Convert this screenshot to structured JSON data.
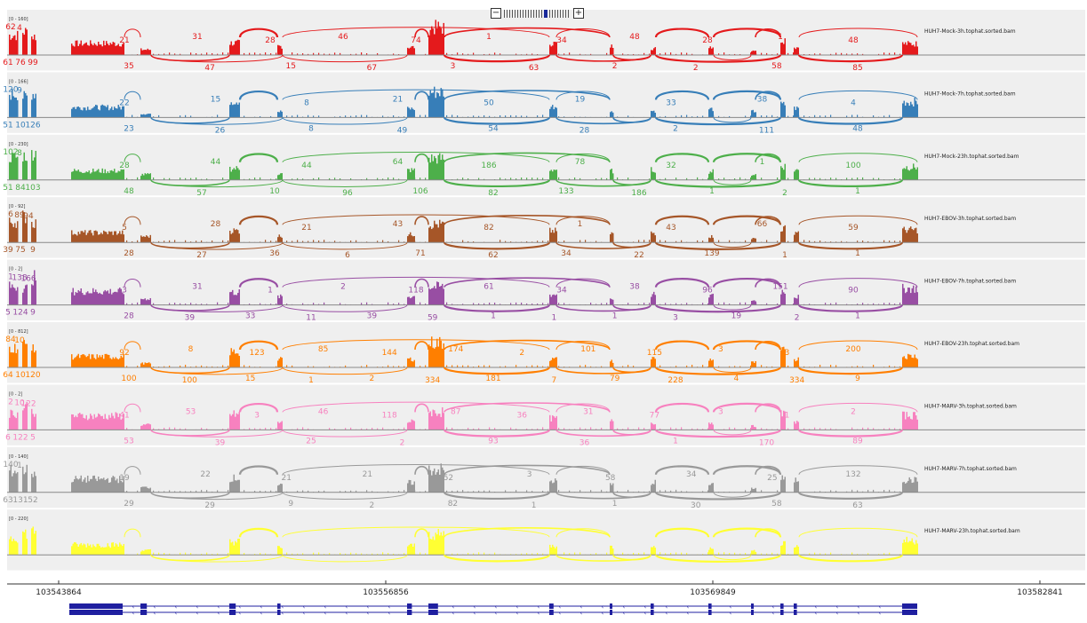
{
  "zoom": {
    "minus": "−",
    "plus": "+"
  },
  "chart_data": {
    "type": "sashimi",
    "x_axis": {
      "ticks": [
        "103543864",
        "103556856",
        "103569849",
        "103582841"
      ]
    },
    "tracks": [
      {
        "name": "HUH7-Mock-3h.tophat.sorted.bam",
        "range": "[0 - 160]",
        "color": "#e41a1c",
        "left_top": [
          "62",
          "4"
        ],
        "left_bottom": [
          "61",
          "76",
          "99"
        ],
        "above": [
          "21",
          "31",
          "28",
          "46",
          "74",
          "1",
          "34",
          "48",
          "28",
          "1",
          "48"
        ],
        "below": [
          "35",
          "47",
          "15",
          "67",
          "3",
          "63",
          "2",
          "2",
          "58",
          "85"
        ]
      },
      {
        "name": "HUH7-Mock-7h.tophat.sorted.bam",
        "range": "[0 - 166]",
        "color": "#377eb8",
        "left_top": [
          "120",
          "9"
        ],
        "left_bottom": [
          "51",
          "10",
          "126"
        ],
        "above": [
          "22",
          "15",
          "8",
          "21",
          "50",
          "19",
          "33",
          "38",
          "4"
        ],
        "below": [
          "23",
          "26",
          "8",
          "49",
          "54",
          "28",
          "2",
          "111",
          "48"
        ]
      },
      {
        "name": "HUH7-Mock-23h.tophat.sorted.bam",
        "range": "[0 - 230]",
        "color": "#4daf4a",
        "left_top": [
          "102",
          "8"
        ],
        "left_bottom": [
          "51",
          "84",
          "103"
        ],
        "above": [
          "28",
          "44",
          "44",
          "64",
          "186",
          "78",
          "32",
          "1",
          "100"
        ],
        "below": [
          "48",
          "57",
          "10",
          "96",
          "106",
          "82",
          "133",
          "186",
          "1",
          "2",
          "1"
        ]
      },
      {
        "name": "HUH7-EBOV-3h.tophat.sorted.bam",
        "range": "[0 - 92]",
        "color": "#a65628",
        "left_top": [
          "6",
          "89",
          "94"
        ],
        "left_bottom": [
          "39",
          "75",
          "9"
        ],
        "above": [
          "5",
          "28",
          "21",
          "43",
          "82",
          "1",
          "43",
          "66",
          "59"
        ],
        "below": [
          "28",
          "27",
          "36",
          "6",
          "71",
          "62",
          "34",
          "22",
          "139",
          "1",
          "1"
        ]
      },
      {
        "name": "HUH7-EBOV-7h.tophat.sorted.bam",
        "range": "[0 - 2]",
        "color": "#984ea3",
        "left_top": [
          "1",
          "138",
          "166"
        ],
        "left_bottom": [
          "5",
          "124",
          "9"
        ],
        "above": [
          "3",
          "31",
          "1",
          "2",
          "118",
          "61",
          "34",
          "38",
          "96",
          "151",
          "90"
        ],
        "below": [
          "28",
          "39",
          "33",
          "11",
          "39",
          "59",
          "1",
          "1",
          "1",
          "3",
          "19",
          "2",
          "1"
        ]
      },
      {
        "name": "HUH7-EBOV-23h.tophat.sorted.bam",
        "range": "[0 - 812]",
        "color": "#ff7f00",
        "left_top": [
          "84",
          "10"
        ],
        "left_bottom": [
          "64",
          "10",
          "120"
        ],
        "above": [
          "92",
          "8",
          "123",
          "85",
          "144",
          "174",
          "2",
          "101",
          "115",
          "3",
          "3",
          "200"
        ],
        "below": [
          "100",
          "100",
          "15",
          "1",
          "2",
          "334",
          "181",
          "7",
          "79",
          "228",
          "4",
          "334",
          "9"
        ]
      },
      {
        "name": "HUH7-MARV-3h.tophat.sorted.bam",
        "range": "[0 - 2]",
        "color": "#f781bf",
        "left_top": [
          "2",
          "10",
          "122"
        ],
        "left_bottom": [
          "6",
          "122",
          "5"
        ],
        "above": [
          "41",
          "53",
          "3",
          "46",
          "118",
          "87",
          "36",
          "31",
          "77",
          "3",
          "1",
          "2"
        ],
        "below": [
          "53",
          "39",
          "25",
          "2",
          "93",
          "36",
          "1",
          "170",
          "89"
        ]
      },
      {
        "name": "HUH7-MARV-7h.tophat.sorted.bam",
        "range": "[0 - 140]",
        "color": "#999999",
        "left_top": [
          "140",
          "1"
        ],
        "left_bottom": [
          "63",
          "131",
          "52"
        ],
        "above": [
          "19",
          "22",
          "21",
          "21",
          "52",
          "3",
          "58",
          "34",
          "25",
          "132"
        ],
        "below": [
          "29",
          "29",
          "9",
          "2",
          "82",
          "1",
          "1",
          "30",
          "58",
          "63"
        ]
      },
      {
        "name": "HUH7-MARV-23h.tophat.sorted.bam",
        "range": "[0 - 220]",
        "color": "#ffff33",
        "left_top": [],
        "left_bottom": [],
        "above": [],
        "below": []
      }
    ]
  }
}
